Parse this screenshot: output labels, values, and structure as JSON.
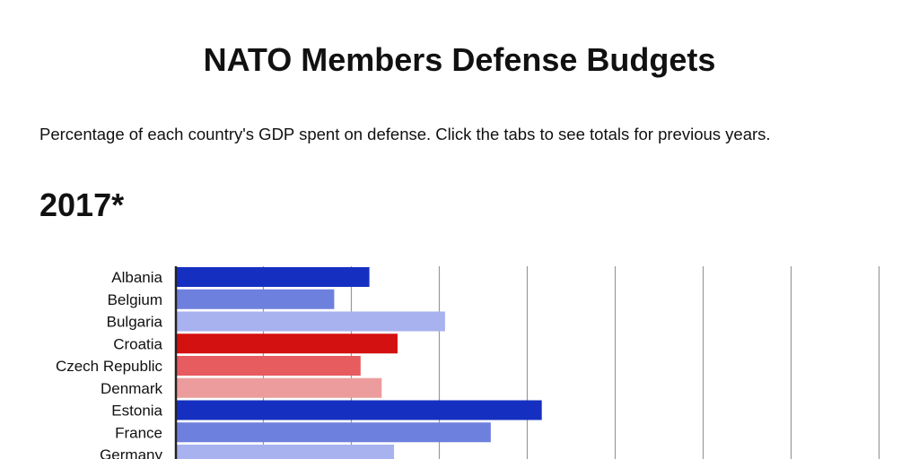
{
  "page": {
    "title": "NATO Members Defense Budgets",
    "subtitle": "Percentage of each country's GDP spent on defense.  Click the tabs to see totals for previous years.",
    "year_heading": "2017*"
  },
  "chart_data": {
    "type": "bar",
    "orientation": "horizontal",
    "categories": [
      "Albania",
      "Belgium",
      "Bulgaria",
      "Croatia",
      "Czech Republic",
      "Denmark",
      "Estonia",
      "France",
      "Germany"
    ],
    "values": [
      1.1,
      0.9,
      1.53,
      1.26,
      1.05,
      1.17,
      2.08,
      1.79,
      1.24
    ],
    "colors": [
      "#1530c0",
      "#6e80dd",
      "#a7b2ee",
      "#d41111",
      "#e65c5f",
      "#ec9c9c",
      "#1530c0",
      "#6e80dd",
      "#a7b2ee"
    ],
    "xlim": [
      0,
      4
    ],
    "grid_step": 0.5,
    "grid": true,
    "title": "",
    "xlabel": "",
    "ylabel": ""
  }
}
